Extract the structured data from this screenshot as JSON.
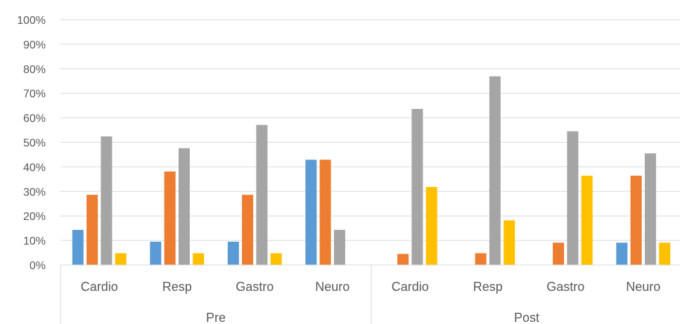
{
  "chart_data": {
    "type": "bar",
    "categories": [
      "Cardio",
      "Resp",
      "Gastro",
      "Neuro",
      "Cardio",
      "Resp",
      "Gastro",
      "Neuro"
    ],
    "groups": [
      {
        "label": "Pre",
        "start": 0,
        "end": 4
      },
      {
        "label": "Post",
        "start": 4,
        "end": 8
      }
    ],
    "series": [
      {
        "color": "#5B9BD5",
        "values": [
          14.3,
          9.5,
          9.5,
          42.9,
          0,
          0,
          0,
          9.1
        ]
      },
      {
        "color": "#ED7D31",
        "values": [
          28.6,
          38.1,
          28.6,
          42.9,
          4.5,
          4.8,
          9.1,
          36.4
        ]
      },
      {
        "color": "#A5A5A5",
        "values": [
          52.4,
          47.6,
          57.1,
          14.3,
          63.6,
          76.9,
          54.5,
          45.5
        ]
      },
      {
        "color": "#FFC000",
        "values": [
          4.8,
          4.8,
          4.8,
          0,
          31.8,
          18.2,
          36.4,
          9.1
        ]
      }
    ],
    "yticks": [
      "0%",
      "10%",
      "20%",
      "30%",
      "40%",
      "50%",
      "60%",
      "70%",
      "80%",
      "90%",
      "100%"
    ],
    "ylim": [
      0,
      100
    ],
    "grid": true,
    "legend": "none",
    "title": "",
    "xlabel": "",
    "ylabel": ""
  }
}
